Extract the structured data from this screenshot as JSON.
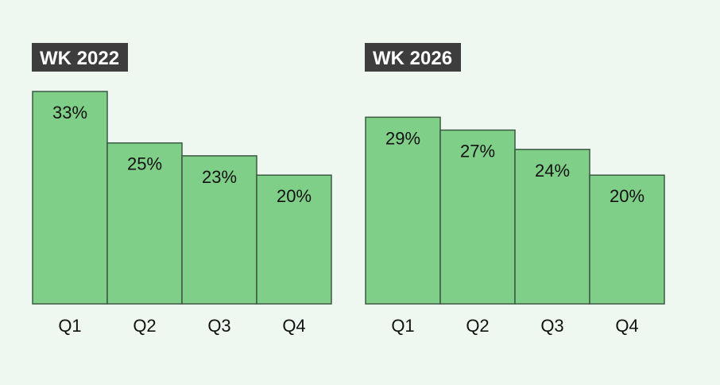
{
  "colors": {
    "background": "#eef7f0",
    "bar_fill": "#80cf88",
    "bar_stroke": "#3a5a42",
    "title_bg": "#3d3d3d",
    "title_text": "#ffffff",
    "label_text": "#111111"
  },
  "chart_data": [
    {
      "type": "bar",
      "title": "WK 2022",
      "categories": [
        "Q1",
        "Q2",
        "Q3",
        "Q4"
      ],
      "values": [
        33,
        25,
        23,
        20
      ],
      "value_labels": [
        "33%",
        "25%",
        "23%",
        "20%"
      ],
      "ylim": [
        0,
        33
      ],
      "grid": false
    },
    {
      "type": "bar",
      "title": "WK 2026",
      "categories": [
        "Q1",
        "Q2",
        "Q3",
        "Q4"
      ],
      "values": [
        29,
        27,
        24,
        20
      ],
      "value_labels": [
        "29%",
        "27%",
        "24%",
        "20%"
      ],
      "ylim": [
        0,
        33
      ],
      "grid": false
    }
  ]
}
